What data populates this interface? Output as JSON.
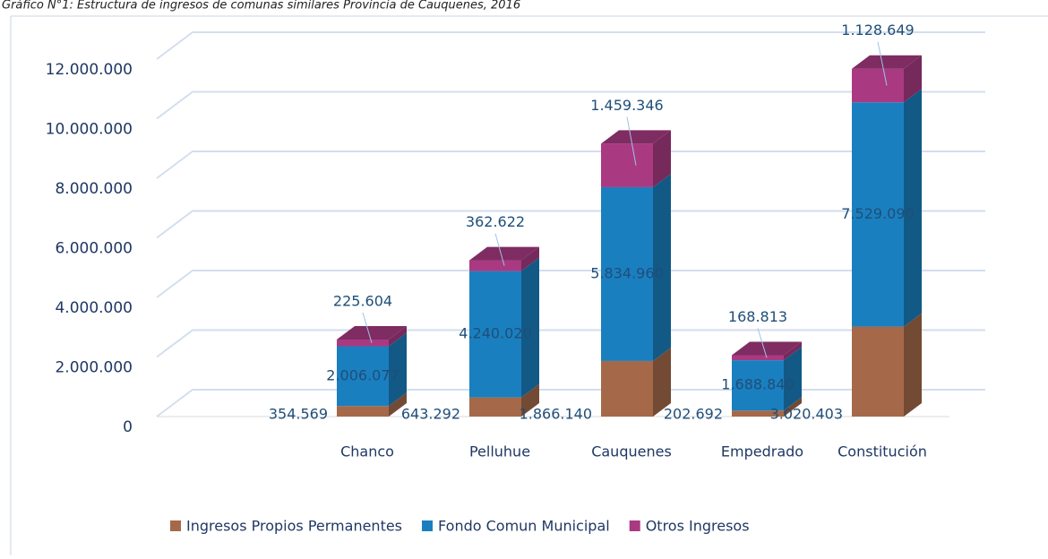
{
  "chart_data": {
    "type": "bar3d_stacked",
    "title": "Gráfico N°1: Estructura de ingresos de comunas similares Provincia de Cauquenes, 2016",
    "categories": [
      "Chanco",
      "Pelluhue",
      "Cauquenes",
      "Empedrado",
      "Constitución"
    ],
    "series": [
      {
        "name": "Ingresos Propios Permanentes",
        "color": "#a5694a",
        "values": [
          354569,
          643292,
          1866140,
          202692,
          3020403
        ],
        "value_labels": [
          "354.569",
          "643.292",
          "1.866.140",
          "202.692",
          "3.020.403"
        ]
      },
      {
        "name": "Fondo Comun Municipal",
        "color": "#1a7fbf",
        "values": [
          2006077,
          4240020,
          5834960,
          1688840,
          7529090
        ],
        "value_labels": [
          "2.006.077",
          "4.240.020",
          "5.834.960",
          "1.688.840",
          "7.529.090"
        ]
      },
      {
        "name": "Otros Ingresos",
        "color": "#a93a82",
        "values": [
          225604,
          362622,
          1459346,
          168813,
          1128649
        ],
        "value_labels": [
          "225.604",
          "362.622",
          "1.459.346",
          "168.813",
          "1.128.649"
        ]
      }
    ],
    "ylim": [
      0,
      12000000
    ],
    "yticks": [
      0,
      {
        "value": 2000000,
        "label": "2.000.000"
      },
      {
        "value": 4000000,
        "label": "4.000.000"
      },
      {
        "value": 6000000,
        "label": "6.000.000"
      },
      {
        "value": 8000000,
        "label": "8.000.000"
      },
      {
        "value": 10000000,
        "label": "10.000.000"
      },
      {
        "value": 12000000,
        "label": "12.000.000"
      }
    ],
    "grid": true,
    "legend": "bottom"
  }
}
